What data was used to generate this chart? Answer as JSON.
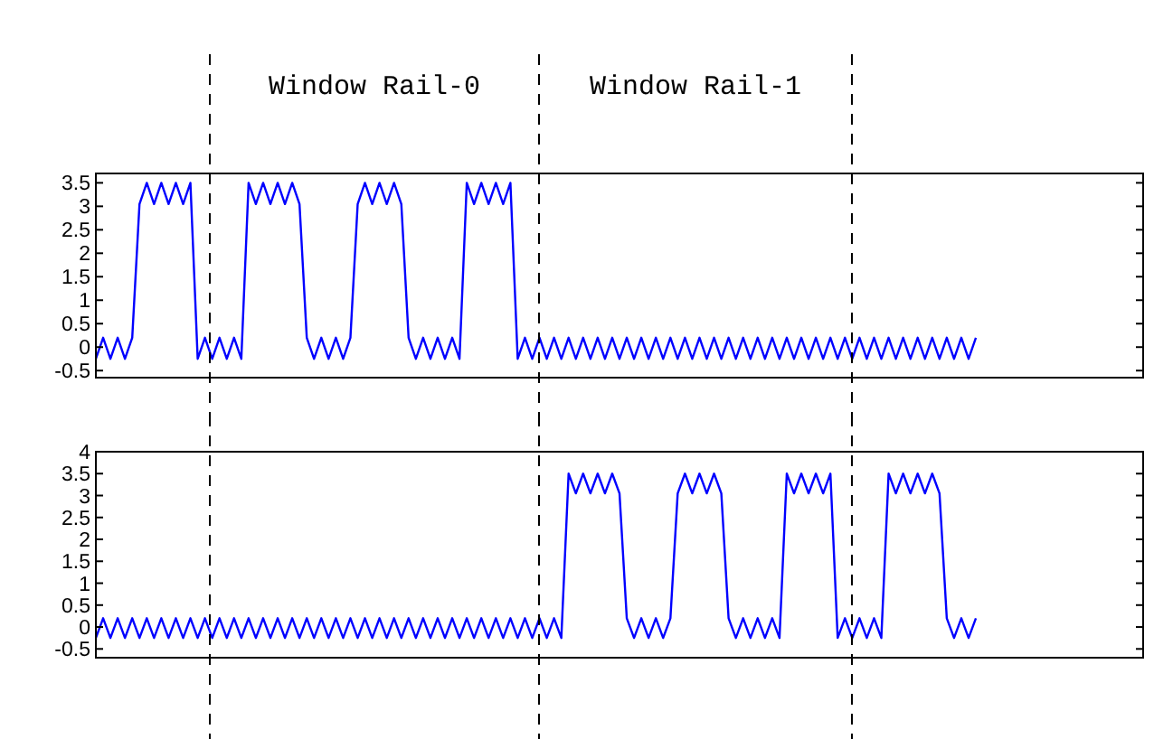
{
  "chart_data": [
    {
      "type": "line",
      "annotations": [
        "Window Rail-0",
        "Window Rail-1"
      ],
      "categories": [
        null,
        null,
        null,
        null,
        null,
        null,
        null,
        null,
        null,
        null,
        null,
        null,
        null,
        null,
        null,
        null,
        null,
        null,
        null,
        null,
        null,
        null,
        null,
        null,
        null,
        null,
        null,
        null,
        null,
        null,
        null,
        null,
        null,
        null,
        null,
        null,
        null,
        null,
        null,
        null,
        null,
        null,
        null,
        null,
        null,
        null,
        null,
        null,
        null,
        null,
        null,
        null,
        null,
        null,
        null,
        null,
        null,
        null,
        null,
        null,
        null,
        null,
        null,
        null,
        null,
        null,
        null,
        null,
        null,
        null,
        null,
        null,
        null,
        null,
        null,
        null,
        null,
        null,
        null,
        null,
        null,
        null,
        null,
        null,
        null,
        null,
        null,
        null,
        null,
        null,
        null,
        null,
        null,
        null,
        null,
        null,
        null,
        null,
        null,
        null,
        null,
        null,
        null,
        null,
        null,
        null,
        null,
        null,
        null,
        null,
        null,
        null,
        null,
        null,
        null,
        null,
        null,
        null,
        null,
        null,
        null,
        null,
        null,
        null,
        null,
        null,
        null,
        null,
        null,
        null,
        null,
        null,
        null,
        null,
        null,
        null,
        null,
        null,
        null,
        null,
        null,
        null,
        null,
        null,
        null
      ],
      "series": [
        {
          "color": "#0000ff",
          "values": [
            -0.25,
            0.2,
            -0.25,
            0.2,
            -0.25,
            0.2,
            3.05,
            3.5,
            3.05,
            3.5,
            3.05,
            3.5,
            3.05,
            3.5,
            -0.25,
            0.2,
            -0.25,
            0.2,
            -0.25,
            0.2,
            -0.25,
            3.5,
            3.05,
            3.5,
            3.05,
            3.5,
            3.05,
            3.5,
            3.05,
            0.2,
            -0.25,
            0.2,
            -0.25,
            0.2,
            -0.25,
            0.2,
            3.05,
            3.5,
            3.05,
            3.5,
            3.05,
            3.5,
            3.05,
            0.2,
            -0.25,
            0.2,
            -0.25,
            0.2,
            -0.25,
            0.2,
            -0.25,
            3.5,
            3.05,
            3.5,
            3.05,
            3.5,
            3.05,
            3.5,
            -0.25,
            0.2,
            -0.25,
            0.2,
            -0.25,
            0.2,
            -0.25,
            0.2,
            -0.25,
            0.2,
            -0.25,
            0.2,
            -0.25,
            0.2,
            -0.25,
            0.2,
            -0.25,
            0.2,
            -0.25,
            0.2,
            -0.25,
            0.2,
            -0.25,
            0.2,
            -0.25,
            0.2,
            -0.25,
            0.2,
            -0.25,
            0.2,
            -0.25,
            0.2,
            -0.25,
            0.2,
            -0.25,
            0.2,
            -0.25,
            0.2,
            -0.25,
            0.2,
            -0.25,
            0.2,
            -0.25,
            0.2,
            -0.25,
            0.2,
            -0.25,
            0.2,
            -0.25,
            0.2,
            -0.25,
            0.2,
            -0.25,
            0.2,
            -0.25,
            0.2,
            -0.25,
            0.2,
            -0.25,
            0.2,
            -0.25,
            0.2,
            -0.25,
            0.2,
            null,
            null,
            null,
            null,
            null,
            null,
            null,
            null,
            null,
            null,
            null,
            null,
            null,
            null,
            null,
            null,
            null,
            null,
            null,
            null,
            null,
            null,
            null
          ]
        }
      ],
      "ylim": [
        -0.65,
        3.7
      ],
      "yticks": [
        {
          "value": -0.5,
          "label": "-0.5"
        },
        0,
        0.5,
        1,
        1.5,
        2,
        2.5,
        3,
        3.5
      ],
      "grid": false,
      "tick_labels": "y"
    },
    {
      "type": "line",
      "categories": [
        null,
        null,
        null,
        null,
        null,
        null,
        null,
        null,
        null,
        null,
        null,
        null,
        null,
        null,
        null,
        null,
        null,
        null,
        null,
        null,
        null,
        null,
        null,
        null,
        null,
        null,
        null,
        null,
        null,
        null,
        null,
        null,
        null,
        null,
        null,
        null,
        null,
        null,
        null,
        null,
        null,
        null,
        null,
        null,
        null,
        null,
        null,
        null,
        null,
        null,
        null,
        null,
        null,
        null,
        null,
        null,
        null,
        null,
        null,
        null,
        null,
        null,
        null,
        null,
        null,
        null,
        null,
        null,
        null,
        null,
        null,
        null,
        null,
        null,
        null,
        null,
        null,
        null,
        null,
        null,
        null,
        null,
        null,
        null,
        null,
        null,
        null,
        null,
        null,
        null,
        null,
        null,
        null,
        null,
        null,
        null,
        null,
        null,
        null,
        null,
        null,
        null,
        null,
        null,
        null,
        null,
        null,
        null,
        null,
        null,
        null,
        null,
        null,
        null,
        null,
        null,
        null,
        null,
        null,
        null,
        null,
        null,
        null,
        null,
        null,
        null,
        null,
        null,
        null,
        null,
        null,
        null,
        null,
        null,
        null,
        null,
        null,
        null,
        null,
        null,
        null,
        null,
        null,
        null,
        null
      ],
      "series": [
        {
          "color": "#0000ff",
          "values": [
            -0.25,
            0.2,
            -0.25,
            0.2,
            -0.25,
            0.2,
            -0.25,
            0.2,
            -0.25,
            0.2,
            -0.25,
            0.2,
            -0.25,
            0.2,
            -0.25,
            0.2,
            -0.25,
            0.2,
            -0.25,
            0.2,
            -0.25,
            0.2,
            -0.25,
            0.2,
            -0.25,
            0.2,
            -0.25,
            0.2,
            -0.25,
            0.2,
            -0.25,
            0.2,
            -0.25,
            0.2,
            -0.25,
            0.2,
            -0.25,
            0.2,
            -0.25,
            0.2,
            -0.25,
            0.2,
            -0.25,
            0.2,
            -0.25,
            0.2,
            -0.25,
            0.2,
            -0.25,
            0.2,
            -0.25,
            0.2,
            -0.25,
            0.2,
            -0.25,
            0.2,
            -0.25,
            0.2,
            -0.25,
            0.2,
            -0.25,
            0.2,
            -0.25,
            0.2,
            -0.25,
            3.5,
            3.05,
            3.5,
            3.05,
            3.5,
            3.05,
            3.5,
            3.05,
            0.2,
            -0.25,
            0.2,
            -0.25,
            0.2,
            -0.25,
            0.2,
            3.05,
            3.5,
            3.05,
            3.5,
            3.05,
            3.5,
            3.05,
            0.2,
            -0.25,
            0.2,
            -0.25,
            0.2,
            -0.25,
            0.2,
            -0.25,
            3.5,
            3.05,
            3.5,
            3.05,
            3.5,
            3.05,
            3.5,
            -0.25,
            0.2,
            -0.25,
            0.2,
            -0.25,
            0.2,
            -0.25,
            3.5,
            3.05,
            3.5,
            3.05,
            3.5,
            3.05,
            3.5,
            3.05,
            0.2,
            -0.25,
            0.2,
            -0.25,
            0.2,
            null,
            null,
            null,
            null,
            null,
            null,
            null,
            null,
            null,
            null,
            null,
            null,
            null,
            null,
            null,
            null,
            null,
            null,
            null,
            null,
            null,
            null,
            null
          ]
        }
      ],
      "ylim": [
        -0.7,
        4
      ],
      "yticks": [
        {
          "value": -0.5,
          "label": "-0.5"
        },
        0,
        0.5,
        1,
        1.5,
        2,
        2.5,
        3,
        3.5,
        4
      ],
      "grid": false,
      "tick_labels": "y"
    }
  ]
}
